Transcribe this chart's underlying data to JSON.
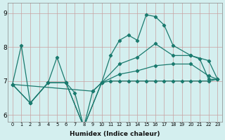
{
  "xlabel": "Humidex (Indice chaleur)",
  "bg_color": "#d4efef",
  "line_color": "#1a7a6e",
  "xlim": [
    -0.5,
    23.5
  ],
  "ylim": [
    5.8,
    9.3
  ],
  "yticks": [
    6,
    7,
    8,
    9
  ],
  "xticks": [
    0,
    1,
    2,
    3,
    4,
    5,
    6,
    7,
    8,
    9,
    10,
    11,
    12,
    13,
    14,
    15,
    16,
    17,
    18,
    19,
    20,
    21,
    22,
    23
  ],
  "line1_x": [
    0,
    1,
    2,
    4,
    5,
    6,
    7,
    8,
    9,
    10,
    11,
    12,
    13,
    14,
    15,
    16,
    17,
    18,
    20,
    21,
    22,
    23
  ],
  "line1_y": [
    6.9,
    8.05,
    6.35,
    6.95,
    7.7,
    6.95,
    6.65,
    5.65,
    6.7,
    6.95,
    7.75,
    8.2,
    8.35,
    8.2,
    8.95,
    8.9,
    8.65,
    8.05,
    7.75,
    7.65,
    7.05,
    7.05
  ],
  "line2_x": [
    0,
    2,
    4,
    6,
    8,
    10,
    12,
    14,
    16,
    18,
    20,
    22,
    23
  ],
  "line2_y": [
    6.9,
    6.35,
    6.95,
    6.95,
    5.65,
    6.95,
    7.5,
    7.7,
    8.1,
    7.75,
    7.75,
    7.6,
    7.05
  ],
  "line3_x": [
    0,
    2,
    4,
    6,
    8,
    10,
    12,
    14,
    16,
    18,
    20,
    22,
    23
  ],
  "line3_y": [
    6.9,
    6.35,
    6.95,
    6.95,
    5.65,
    6.95,
    7.2,
    7.3,
    7.45,
    7.5,
    7.5,
    7.15,
    7.05
  ],
  "line4_x": [
    0,
    9,
    10,
    11,
    12,
    13,
    14,
    15,
    16,
    17,
    18,
    19,
    20,
    21,
    22,
    23
  ],
  "line4_y": [
    6.9,
    6.7,
    6.95,
    7.0,
    7.0,
    7.0,
    7.0,
    7.0,
    7.0,
    7.0,
    7.0,
    7.0,
    7.0,
    7.0,
    7.0,
    7.05
  ]
}
